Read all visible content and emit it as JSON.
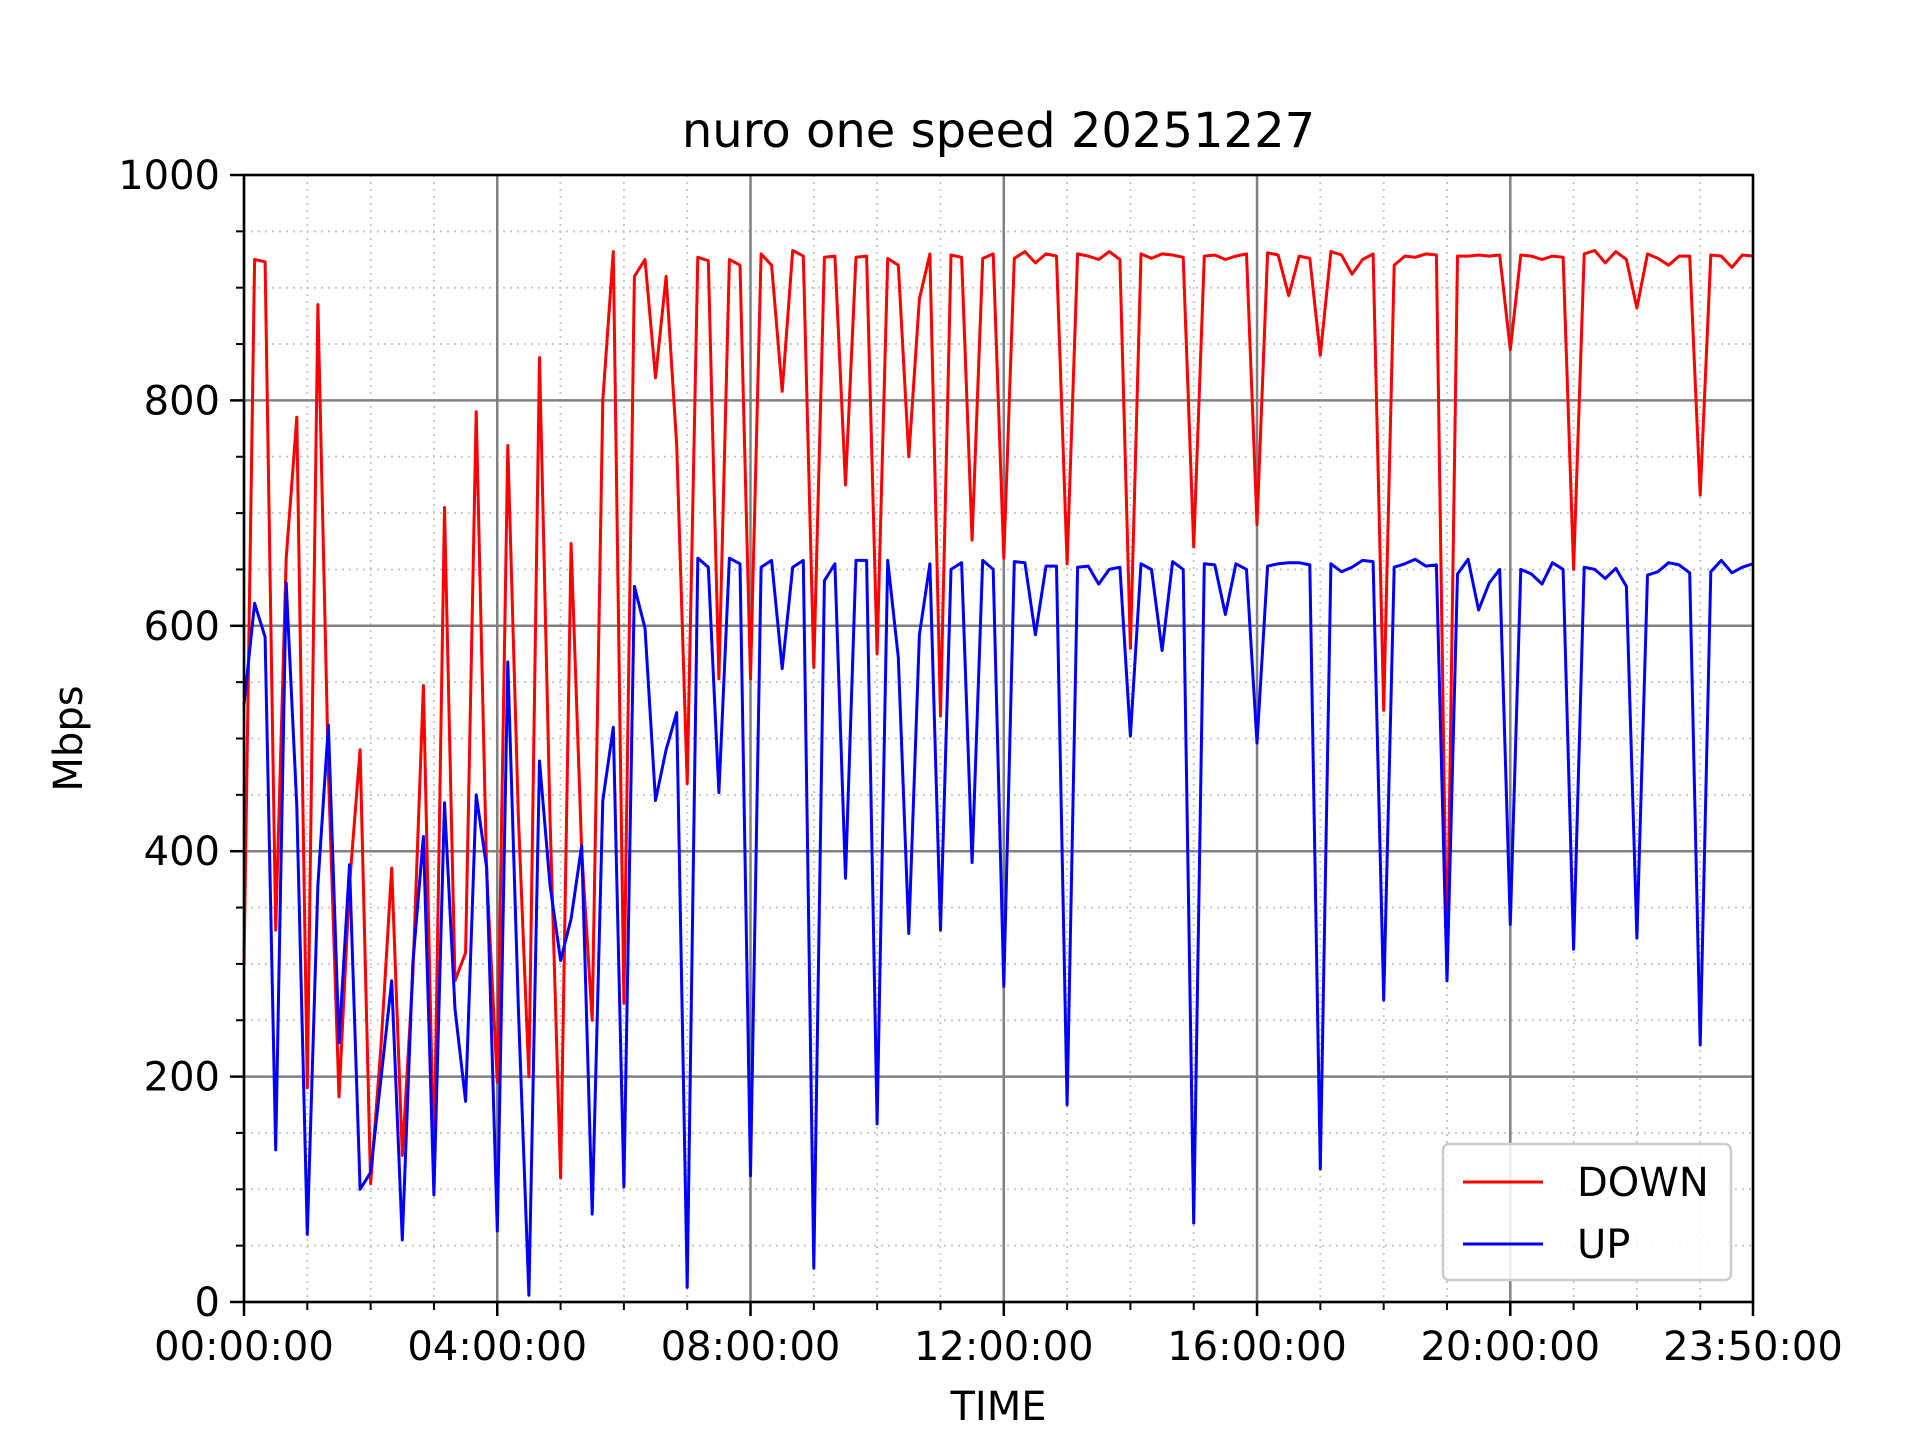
{
  "chart_data": {
    "type": "line",
    "title": "nuro one speed 20251227",
    "xlabel": "TIME",
    "ylabel": "Mbps",
    "xlim": [
      "00:00:00",
      "23:50:00"
    ],
    "ylim": [
      0,
      1000
    ],
    "x_major_ticks": [
      "00:00:00",
      "04:00:00",
      "08:00:00",
      "12:00:00",
      "16:00:00",
      "20:00:00",
      "23:50:00"
    ],
    "y_major_ticks": [
      "0",
      "200",
      "400",
      "600",
      "800",
      "1000"
    ],
    "grid": "major solid, minor dotted",
    "legend_position": "lower-right",
    "series": [
      {
        "name": "DOWN",
        "color": "#ff0000",
        "points": [
          [
            "00:00:00",
            300
          ],
          [
            "00:10:00",
            925
          ],
          [
            "00:20:00",
            923
          ],
          [
            "00:30:00",
            330
          ],
          [
            "00:40:00",
            660
          ],
          [
            "00:50:00",
            785
          ],
          [
            "01:00:00",
            190
          ],
          [
            "01:10:00",
            885
          ],
          [
            "01:20:00",
            470
          ],
          [
            "01:30:00",
            182
          ],
          [
            "01:40:00",
            370
          ],
          [
            "01:50:00",
            490
          ],
          [
            "02:00:00",
            105
          ],
          [
            "02:10:00",
            230
          ],
          [
            "02:20:00",
            385
          ],
          [
            "02:30:00",
            130
          ],
          [
            "02:40:00",
            290
          ],
          [
            "02:50:00",
            547
          ],
          [
            "03:00:00",
            120
          ],
          [
            "03:10:00",
            705
          ],
          [
            "03:20:00",
            285
          ],
          [
            "03:30:00",
            310
          ],
          [
            "03:40:00",
            790
          ],
          [
            "03:50:00",
            380
          ],
          [
            "04:00:00",
            195
          ],
          [
            "04:10:00",
            760
          ],
          [
            "04:20:00",
            430
          ],
          [
            "04:30:00",
            200
          ],
          [
            "04:40:00",
            838
          ],
          [
            "04:50:00",
            430
          ],
          [
            "05:00:00",
            110
          ],
          [
            "05:10:00",
            673
          ],
          [
            "05:20:00",
            400
          ],
          [
            "05:30:00",
            250
          ],
          [
            "05:40:00",
            800
          ],
          [
            "05:50:00",
            932
          ],
          [
            "06:00:00",
            265
          ],
          [
            "06:10:00",
            910
          ],
          [
            "06:20:00",
            925
          ],
          [
            "06:30:00",
            820
          ],
          [
            "06:40:00",
            910
          ],
          [
            "06:50:00",
            760
          ],
          [
            "07:00:00",
            460
          ],
          [
            "07:10:00",
            927
          ],
          [
            "07:20:00",
            924
          ],
          [
            "07:30:00",
            553
          ],
          [
            "07:40:00",
            925
          ],
          [
            "07:50:00",
            920
          ],
          [
            "08:00:00",
            553
          ],
          [
            "08:10:00",
            930
          ],
          [
            "08:20:00",
            920
          ],
          [
            "08:30:00",
            808
          ],
          [
            "08:40:00",
            933
          ],
          [
            "08:50:00",
            928
          ],
          [
            "09:00:00",
            563
          ],
          [
            "09:10:00",
            927
          ],
          [
            "09:20:00",
            928
          ],
          [
            "09:30:00",
            725
          ],
          [
            "09:40:00",
            927
          ],
          [
            "09:50:00",
            928
          ],
          [
            "10:00:00",
            575
          ],
          [
            "10:10:00",
            926
          ],
          [
            "10:20:00",
            920
          ],
          [
            "10:30:00",
            750
          ],
          [
            "10:40:00",
            890
          ],
          [
            "10:50:00",
            930
          ],
          [
            "11:00:00",
            520
          ],
          [
            "11:10:00",
            929
          ],
          [
            "11:20:00",
            927
          ],
          [
            "11:30:00",
            676
          ],
          [
            "11:40:00",
            926
          ],
          [
            "11:50:00",
            930
          ],
          [
            "12:00:00",
            660
          ],
          [
            "12:10:00",
            926
          ],
          [
            "12:20:00",
            932
          ],
          [
            "12:30:00",
            922
          ],
          [
            "12:40:00",
            930
          ],
          [
            "12:50:00",
            928
          ],
          [
            "13:00:00",
            655
          ],
          [
            "13:10:00",
            930
          ],
          [
            "13:20:00",
            928
          ],
          [
            "13:30:00",
            925
          ],
          [
            "13:40:00",
            932
          ],
          [
            "13:50:00",
            925
          ],
          [
            "14:00:00",
            580
          ],
          [
            "14:10:00",
            930
          ],
          [
            "14:20:00",
            926
          ],
          [
            "14:30:00",
            930
          ],
          [
            "14:40:00",
            929
          ],
          [
            "14:50:00",
            927
          ],
          [
            "15:00:00",
            670
          ],
          [
            "15:10:00",
            928
          ],
          [
            "15:20:00",
            929
          ],
          [
            "15:30:00",
            925
          ],
          [
            "15:40:00",
            928
          ],
          [
            "15:50:00",
            930
          ],
          [
            "16:00:00",
            690
          ],
          [
            "16:10:00",
            931
          ],
          [
            "16:20:00",
            929
          ],
          [
            "16:30:00",
            893
          ],
          [
            "16:40:00",
            928
          ],
          [
            "16:50:00",
            926
          ],
          [
            "17:00:00",
            840
          ],
          [
            "17:10:00",
            932
          ],
          [
            "17:20:00",
            929
          ],
          [
            "17:30:00",
            912
          ],
          [
            "17:40:00",
            925
          ],
          [
            "17:50:00",
            930
          ],
          [
            "18:00:00",
            525
          ],
          [
            "18:10:00",
            920
          ],
          [
            "18:20:00",
            928
          ],
          [
            "18:30:00",
            927
          ],
          [
            "18:40:00",
            930
          ],
          [
            "18:50:00",
            929
          ],
          [
            "19:00:00",
            290
          ],
          [
            "19:10:00",
            928
          ],
          [
            "19:20:00",
            928
          ],
          [
            "19:30:00",
            929
          ],
          [
            "19:40:00",
            928
          ],
          [
            "19:50:00",
            929
          ],
          [
            "20:00:00",
            845
          ],
          [
            "20:10:00",
            929
          ],
          [
            "20:20:00",
            928
          ],
          [
            "20:30:00",
            925
          ],
          [
            "20:40:00",
            928
          ],
          [
            "20:50:00",
            927
          ],
          [
            "21:00:00",
            650
          ],
          [
            "21:10:00",
            930
          ],
          [
            "21:20:00",
            933
          ],
          [
            "21:30:00",
            922
          ],
          [
            "21:40:00",
            932
          ],
          [
            "21:50:00",
            925
          ],
          [
            "22:00:00",
            882
          ],
          [
            "22:10:00",
            930
          ],
          [
            "22:20:00",
            926
          ],
          [
            "22:30:00",
            920
          ],
          [
            "22:40:00",
            928
          ],
          [
            "22:50:00",
            928
          ],
          [
            "23:00:00",
            716
          ],
          [
            "23:10:00",
            929
          ],
          [
            "23:20:00",
            928
          ],
          [
            "23:30:00",
            918
          ],
          [
            "23:40:00",
            929
          ],
          [
            "23:50:00",
            928
          ]
        ]
      },
      {
        "name": "UP",
        "color": "#0000ff",
        "points": [
          [
            "00:00:00",
            530
          ],
          [
            "00:10:00",
            620
          ],
          [
            "00:20:00",
            590
          ],
          [
            "00:30:00",
            135
          ],
          [
            "00:40:00",
            638
          ],
          [
            "00:50:00",
            440
          ],
          [
            "01:00:00",
            60
          ],
          [
            "01:10:00",
            370
          ],
          [
            "01:20:00",
            512
          ],
          [
            "01:30:00",
            230
          ],
          [
            "01:40:00",
            388
          ],
          [
            "01:50:00",
            100
          ],
          [
            "02:00:00",
            115
          ],
          [
            "02:10:00",
            200
          ],
          [
            "02:20:00",
            285
          ],
          [
            "02:30:00",
            55
          ],
          [
            "02:40:00",
            300
          ],
          [
            "02:50:00",
            413
          ],
          [
            "03:00:00",
            95
          ],
          [
            "03:10:00",
            443
          ],
          [
            "03:20:00",
            260
          ],
          [
            "03:30:00",
            178
          ],
          [
            "03:40:00",
            450
          ],
          [
            "03:50:00",
            385
          ],
          [
            "04:00:00",
            63
          ],
          [
            "04:10:00",
            568
          ],
          [
            "04:20:00",
            260
          ],
          [
            "04:30:00",
            6
          ],
          [
            "04:40:00",
            480
          ],
          [
            "04:50:00",
            370
          ],
          [
            "05:00:00",
            303
          ],
          [
            "05:10:00",
            340
          ],
          [
            "05:20:00",
            405
          ],
          [
            "05:30:00",
            78
          ],
          [
            "05:40:00",
            445
          ],
          [
            "05:50:00",
            510
          ],
          [
            "06:00:00",
            102
          ],
          [
            "06:10:00",
            635
          ],
          [
            "06:20:00",
            598
          ],
          [
            "06:30:00",
            445
          ],
          [
            "06:40:00",
            490
          ],
          [
            "06:50:00",
            523
          ],
          [
            "07:00:00",
            13
          ],
          [
            "07:10:00",
            660
          ],
          [
            "07:20:00",
            652
          ],
          [
            "07:30:00",
            452
          ],
          [
            "07:40:00",
            660
          ],
          [
            "07:50:00",
            655
          ],
          [
            "08:00:00",
            112
          ],
          [
            "08:10:00",
            652
          ],
          [
            "08:20:00",
            658
          ],
          [
            "08:30:00",
            562
          ],
          [
            "08:40:00",
            652
          ],
          [
            "08:50:00",
            658
          ],
          [
            "09:00:00",
            30
          ],
          [
            "09:10:00",
            640
          ],
          [
            "09:20:00",
            655
          ],
          [
            "09:30:00",
            376
          ],
          [
            "09:40:00",
            658
          ],
          [
            "09:50:00",
            658
          ],
          [
            "10:00:00",
            158
          ],
          [
            "10:10:00",
            658
          ],
          [
            "10:20:00",
            572
          ],
          [
            "10:30:00",
            327
          ],
          [
            "10:40:00",
            592
          ],
          [
            "10:50:00",
            655
          ],
          [
            "11:00:00",
            330
          ],
          [
            "11:10:00",
            650
          ],
          [
            "11:20:00",
            656
          ],
          [
            "11:30:00",
            390
          ],
          [
            "11:40:00",
            658
          ],
          [
            "11:50:00",
            650
          ],
          [
            "12:00:00",
            280
          ],
          [
            "12:10:00",
            657
          ],
          [
            "12:20:00",
            656
          ],
          [
            "12:30:00",
            592
          ],
          [
            "12:40:00",
            653
          ],
          [
            "12:50:00",
            653
          ],
          [
            "13:00:00",
            175
          ],
          [
            "13:10:00",
            652
          ],
          [
            "13:20:00",
            653
          ],
          [
            "13:30:00",
            637
          ],
          [
            "13:40:00",
            650
          ],
          [
            "13:50:00",
            652
          ],
          [
            "14:00:00",
            502
          ],
          [
            "14:10:00",
            655
          ],
          [
            "14:20:00",
            650
          ],
          [
            "14:30:00",
            578
          ],
          [
            "14:40:00",
            657
          ],
          [
            "14:50:00",
            650
          ],
          [
            "15:00:00",
            70
          ],
          [
            "15:10:00",
            655
          ],
          [
            "15:20:00",
            654
          ],
          [
            "15:30:00",
            610
          ],
          [
            "15:40:00",
            655
          ],
          [
            "15:50:00",
            650
          ],
          [
            "16:00:00",
            496
          ],
          [
            "16:10:00",
            653
          ],
          [
            "16:20:00",
            655
          ],
          [
            "16:30:00",
            656
          ],
          [
            "16:40:00",
            656
          ],
          [
            "16:50:00",
            654
          ],
          [
            "17:00:00",
            118
          ],
          [
            "17:10:00",
            655
          ],
          [
            "17:20:00",
            648
          ],
          [
            "17:30:00",
            652
          ],
          [
            "17:40:00",
            658
          ],
          [
            "17:50:00",
            657
          ],
          [
            "18:00:00",
            268
          ],
          [
            "18:10:00",
            652
          ],
          [
            "18:20:00",
            655
          ],
          [
            "18:30:00",
            659
          ],
          [
            "18:40:00",
            653
          ],
          [
            "18:50:00",
            654
          ],
          [
            "19:00:00",
            285
          ],
          [
            "19:10:00",
            646
          ],
          [
            "19:20:00",
            659
          ],
          [
            "19:30:00",
            614
          ],
          [
            "19:40:00",
            638
          ],
          [
            "19:50:00",
            650
          ],
          [
            "20:00:00",
            335
          ],
          [
            "20:10:00",
            650
          ],
          [
            "20:20:00",
            646
          ],
          [
            "20:30:00",
            637
          ],
          [
            "20:40:00",
            656
          ],
          [
            "20:50:00",
            650
          ],
          [
            "21:00:00",
            313
          ],
          [
            "21:10:00",
            652
          ],
          [
            "21:20:00",
            650
          ],
          [
            "21:30:00",
            642
          ],
          [
            "21:40:00",
            651
          ],
          [
            "21:50:00",
            635
          ],
          [
            "22:00:00",
            323
          ],
          [
            "22:10:00",
            645
          ],
          [
            "22:20:00",
            648
          ],
          [
            "22:30:00",
            656
          ],
          [
            "22:40:00",
            654
          ],
          [
            "22:50:00",
            647
          ],
          [
            "23:00:00",
            228
          ],
          [
            "23:10:00",
            648
          ],
          [
            "23:20:00",
            658
          ],
          [
            "23:30:00",
            647
          ],
          [
            "23:40:00",
            652
          ],
          [
            "23:50:00",
            655
          ]
        ]
      }
    ]
  }
}
